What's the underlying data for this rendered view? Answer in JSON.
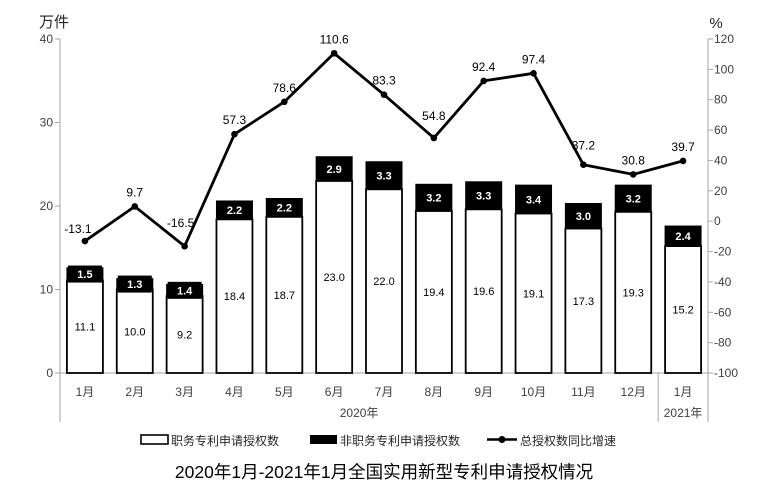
{
  "page": {
    "background": "#ffffff"
  },
  "chart_data": {
    "type": "combo-stacked-bar-line",
    "title": "2020年1月-2021年1月全国实用新型专利申请授权情况",
    "left_axis": {
      "unit": "万件",
      "min": 0,
      "max": 40,
      "ticks": [
        0,
        10,
        20,
        30,
        40
      ]
    },
    "right_axis": {
      "unit": "%",
      "min": -100,
      "max": 120,
      "ticks": [
        120,
        100,
        80,
        60,
        40,
        20,
        0,
        -20,
        -40,
        -60,
        -80,
        -100
      ]
    },
    "categories": [
      "1月",
      "2月",
      "3月",
      "4月",
      "5月",
      "6月",
      "7月",
      "8月",
      "9月",
      "10月",
      "11月",
      "12月",
      "1月"
    ],
    "category_groups": [
      {
        "label": "2020年",
        "from": 0,
        "to": 11
      },
      {
        "label": "2021年",
        "from": 12,
        "to": 12
      }
    ],
    "series": [
      {
        "name": "职务专利申请授权数",
        "type": "bar",
        "color": "#ffffff",
        "border": "#000000",
        "values": [
          11.1,
          10.0,
          9.2,
          18.4,
          18.7,
          23.0,
          22.0,
          19.4,
          19.6,
          19.1,
          17.3,
          19.3,
          15.2
        ]
      },
      {
        "name": "非职务专利申请授权数",
        "type": "bar",
        "color": "#000000",
        "values": [
          1.5,
          1.3,
          1.4,
          2.2,
          2.2,
          2.9,
          3.3,
          3.2,
          3.3,
          3.4,
          3.0,
          3.2,
          2.4
        ]
      },
      {
        "name": "总授权数同比增速",
        "type": "line",
        "axis": "right",
        "color": "#000000",
        "values": [
          -13.1,
          9.7,
          -16.5,
          57.3,
          78.6,
          110.6,
          83.3,
          54.8,
          92.4,
          97.4,
          37.2,
          30.8,
          39.7
        ]
      }
    ],
    "legend_position": "bottom",
    "grid": false
  }
}
